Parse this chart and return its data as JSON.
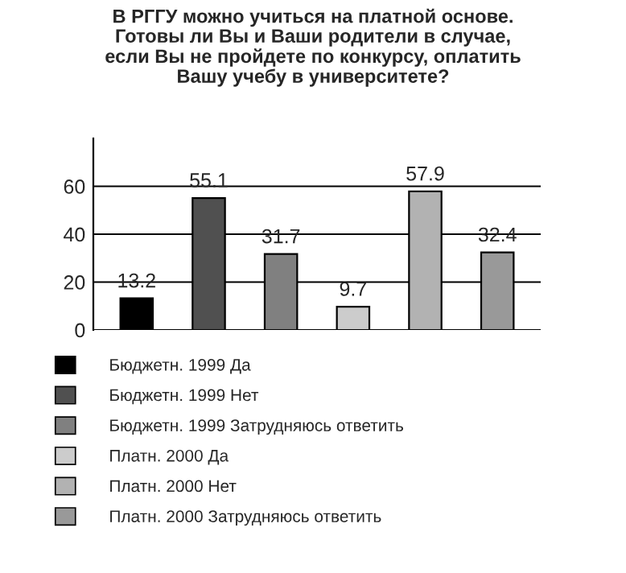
{
  "chart_data": {
    "type": "bar",
    "title": "В РГГУ можно учиться на платной основе.\nГотовы ли Вы и Ваши родители в случае,\nесли Вы не пройдете по конкурсу, оплатить\nВашу учебу в университете?",
    "categories": [
      null,
      null,
      null,
      null,
      null,
      null
    ],
    "series": [
      {
        "name": "Бюджетн. 1999 Да",
        "color": "#000000",
        "values": [
          13.2,
          null,
          null,
          null,
          null,
          null
        ]
      },
      {
        "name": "Бюджетн. 1999 Нет",
        "color": "#505050",
        "values": [
          null,
          55.1,
          null,
          null,
          null,
          null
        ]
      },
      {
        "name": "Бюджетн. 1999 Затрудняюсь ответить",
        "color": "#808080",
        "values": [
          null,
          null,
          31.7,
          null,
          null,
          null
        ]
      },
      {
        "name": "Платн. 2000 Да",
        "color": "#cccccc",
        "values": [
          null,
          null,
          null,
          9.7,
          null,
          null
        ]
      },
      {
        "name": "Платн. 2000 Нет",
        "color": "#b2b2b2",
        "values": [
          null,
          null,
          null,
          null,
          57.9,
          null
        ]
      },
      {
        "name": "Платн. 2000 Затрудняюсь ответить",
        "color": "#999999",
        "values": [
          null,
          null,
          null,
          null,
          null,
          32.4
        ]
      }
    ],
    "ylim": [
      0,
      80
    ],
    "yticks": [
      0,
      20,
      40,
      60
    ],
    "grid": "y",
    "data_labels": true,
    "legend": "bottom",
    "tick_labels": "y"
  }
}
